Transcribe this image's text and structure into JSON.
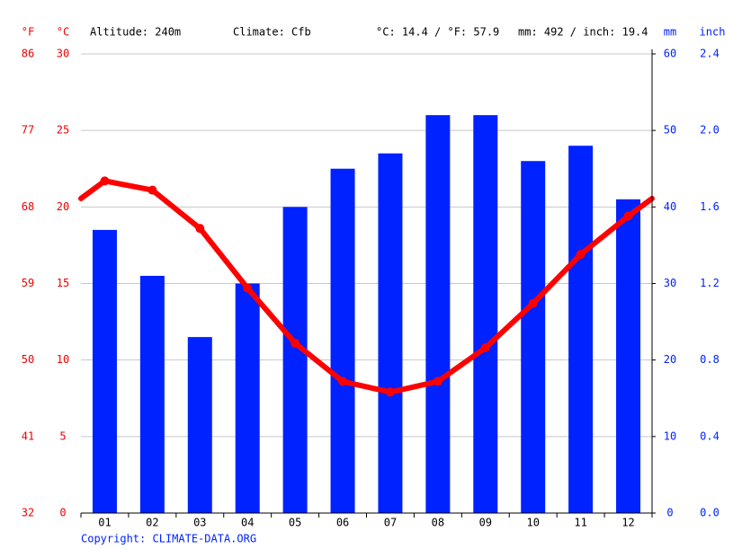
{
  "chart_data": {
    "type": "bar",
    "header": {
      "altitude": "Altitude: 240m",
      "climate": "Climate: Cfb",
      "temperature": "°C: 14.4 / °F: 57.9",
      "precipitation": "mm: 492 / inch: 19.4"
    },
    "y_label_f": "°F",
    "y_label": "°C",
    "y2_label": "mm",
    "y3_label": "inch",
    "copyright": "Copyright: CLIMATE-DATA.ORG",
    "categories": [
      "01",
      "02",
      "03",
      "04",
      "05",
      "06",
      "07",
      "08",
      "09",
      "10",
      "11",
      "12"
    ],
    "series": [
      {
        "type": "bar",
        "axis": "y2",
        "color": "#0022ff",
        "values": [
          37,
          31,
          23,
          30,
          40,
          45,
          47,
          52,
          52,
          46,
          48,
          41
        ]
      },
      {
        "type": "line",
        "axis": "y",
        "color": "#ff0000",
        "values": [
          21.7,
          21.1,
          18.6,
          14.7,
          11.1,
          8.6,
          7.9,
          8.6,
          10.8,
          13.7,
          16.9,
          19.4
        ]
      }
    ],
    "ylim": [
      0,
      30
    ],
    "yticks": [
      0,
      5,
      10,
      15,
      20,
      25,
      30
    ],
    "ylim_f": [
      32,
      86
    ],
    "yticks_f": [
      32,
      41,
      50,
      59,
      68,
      77,
      86
    ],
    "y2lim": [
      0,
      60
    ],
    "y2ticks": [
      0,
      10,
      20,
      30,
      40,
      50,
      60
    ],
    "y3lim": [
      0,
      2.4
    ],
    "y3ticks": [
      {
        "value": 0,
        "label": "0.0"
      },
      0.4,
      0.8,
      1.2,
      1.6,
      {
        "value": 2,
        "label": "2.0"
      },
      2.4
    ],
    "grid": true
  }
}
